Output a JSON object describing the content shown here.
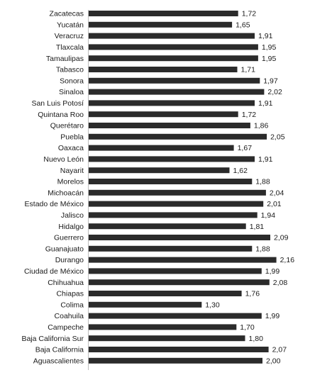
{
  "chart_data": {
    "type": "bar",
    "orientation": "horizontal",
    "categories": [
      "Zacatecas",
      "Yucatán",
      "Veracruz",
      "Tlaxcala",
      "Tamaulipas",
      "Tabasco",
      "Sonora",
      "Sinaloa",
      "San Luis Potosí",
      "Quintana Roo",
      "Querétaro",
      "Puebla",
      "Oaxaca",
      "Nuevo León",
      "Nayarit",
      "Morelos",
      "Michoacán",
      "Estado de México",
      "Jalisco",
      "Hidalgo",
      "Guerrero",
      "Guanajuato",
      "Durango",
      "Ciudad de México",
      "Chihuahua",
      "Chiapas",
      "Colima",
      "Coahuila",
      "Campeche",
      "Baja California Sur",
      "Baja California",
      "Aguascalientes"
    ],
    "values": [
      1.72,
      1.65,
      1.91,
      1.95,
      1.95,
      1.71,
      1.97,
      2.02,
      1.91,
      1.72,
      1.86,
      2.05,
      1.67,
      1.91,
      1.62,
      1.88,
      2.04,
      2.01,
      1.94,
      1.81,
      2.09,
      1.88,
      2.16,
      1.99,
      2.08,
      1.76,
      1.3,
      1.99,
      1.7,
      1.8,
      2.07,
      2.0
    ],
    "value_labels": [
      "1,72",
      "1,65",
      "1,91",
      "1,95",
      "1,95",
      "1,71",
      "1,97",
      "2,02",
      "1,91",
      "1,72",
      "1,86",
      "2,05",
      "1,67",
      "1,91",
      "1,62",
      "1,88",
      "2,04",
      "2,01",
      "1,94",
      "1,81",
      "2,09",
      "1,88",
      "2,16",
      "1,99",
      "2,08",
      "1,76",
      "1,30",
      "1,99",
      "1,70",
      "1,80",
      "2,07",
      "2,00"
    ],
    "title": "",
    "xlabel": "",
    "ylabel": "",
    "xlim": [
      0,
      2.16
    ],
    "grid": false,
    "legend": "none",
    "bar_color": "#2b2b2b"
  }
}
